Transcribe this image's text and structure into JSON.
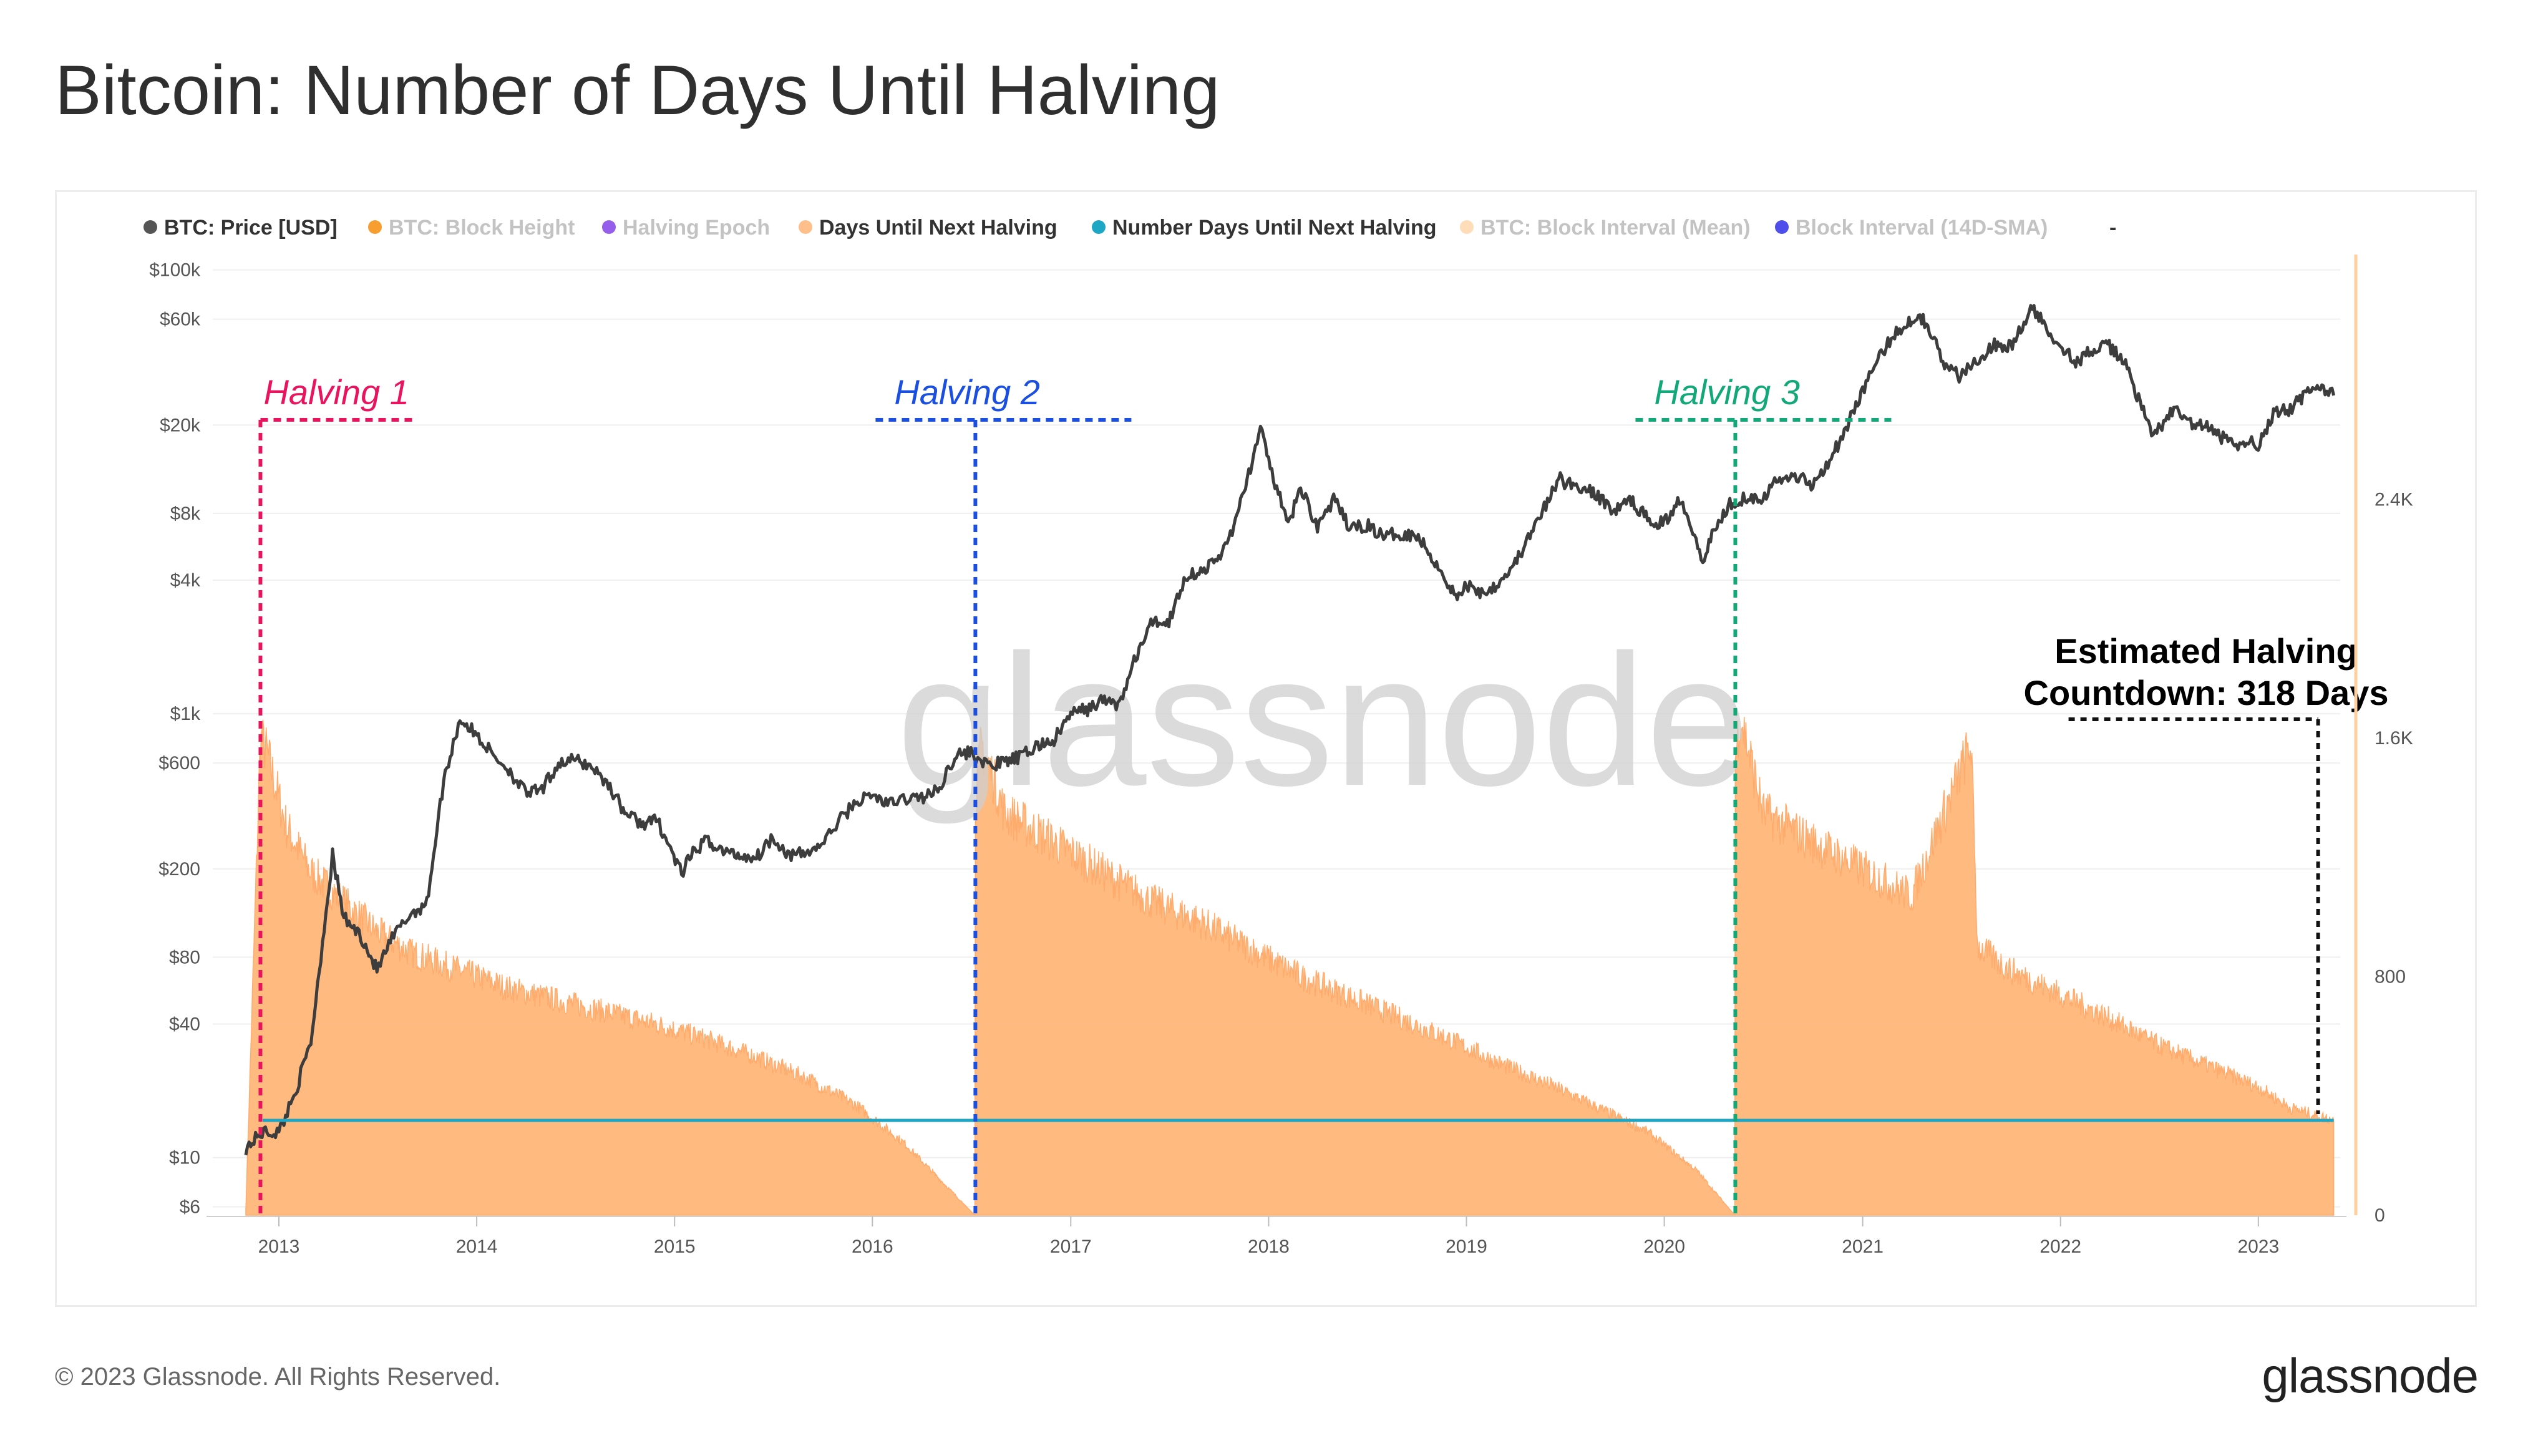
{
  "page": {
    "title": "Bitcoin: Number of Days Until Halving",
    "copyright": "© 2023 Glassnode. All Rights Reserved.",
    "logo_text": "glassnode",
    "watermark": "glassnode"
  },
  "legend": [
    {
      "label": "BTC: Price [USD]",
      "color": "#555555",
      "active": true
    },
    {
      "label": "BTC: Block Height",
      "color": "#f7931a",
      "active": false
    },
    {
      "label": "Halving Epoch",
      "color": "#8a4de8",
      "active": false
    },
    {
      "label": "Days Until Next Halving",
      "color": "#ffbf8a",
      "active": true
    },
    {
      "label": "Number Days Until Next Halving",
      "color": "#1ea7c4",
      "active": true
    },
    {
      "label": "BTC: Block Interval (Mean)",
      "color": "#ffd9b0",
      "active": false
    },
    {
      "label": "Block Interval (14D-SMA)",
      "color": "#3b3be8",
      "active": false
    },
    {
      "label": "-",
      "color": "#333333",
      "active": true
    }
  ],
  "annotations": {
    "halving1": {
      "label": "Halving 1",
      "color": "#e8155e",
      "date": "2012-11-28"
    },
    "halving2": {
      "label": "Halving 2",
      "color": "#1a4fe0",
      "date": "2016-07-09"
    },
    "halving3": {
      "label": "Halving 3",
      "color": "#12a878",
      "date": "2020-05-11"
    },
    "estimate_line1": "Estimated Halving",
    "estimate_line2": "Countdown: 318 Days"
  },
  "chart_data": {
    "type": "line",
    "x_range": [
      "2012-09-01",
      "2023-06-01"
    ],
    "x_ticks": [
      "2013",
      "2014",
      "2015",
      "2016",
      "2017",
      "2018",
      "2019",
      "2020",
      "2021",
      "2022",
      "2023"
    ],
    "y_left_scale": "log",
    "y_left_ticks": [
      "$100k",
      "$60k",
      "$20k",
      "$8k",
      "$4k",
      "$1k",
      "$600",
      "$200",
      "$80",
      "$40",
      "$10",
      "$6"
    ],
    "y_left_tick_values": [
      100000,
      60000,
      20000,
      8000,
      4000,
      1000,
      600,
      200,
      80,
      40,
      10,
      6
    ],
    "y_right_ticks": [
      "2.4K",
      "1.6K",
      "800",
      "0"
    ],
    "y_right_tick_values": [
      2400,
      1600,
      800,
      0
    ],
    "y_right_range": [
      0,
      3200
    ],
    "grid": true,
    "legend_position": "top",
    "series": [
      {
        "name": "BTC: Price [USD]",
        "kind": "line",
        "axis": "left",
        "color": "#3d3d3d",
        "x": [
          "2012-11-01",
          "2012-12-01",
          "2013-01-01",
          "2013-02-01",
          "2013-03-01",
          "2013-04-10",
          "2013-05-01",
          "2013-06-01",
          "2013-07-01",
          "2013-08-01",
          "2013-09-01",
          "2013-10-01",
          "2013-11-01",
          "2013-12-01",
          "2014-01-01",
          "2014-02-01",
          "2014-03-01",
          "2014-04-01",
          "2014-05-01",
          "2014-06-01",
          "2014-07-01",
          "2014-08-01",
          "2014-09-01",
          "2014-10-01",
          "2014-11-01",
          "2014-12-01",
          "2015-01-14",
          "2015-02-01",
          "2015-03-01",
          "2015-04-01",
          "2015-05-01",
          "2015-06-01",
          "2015-07-01",
          "2015-08-01",
          "2015-09-01",
          "2015-10-01",
          "2015-11-01",
          "2015-12-01",
          "2016-01-01",
          "2016-02-01",
          "2016-03-01",
          "2016-04-01",
          "2016-05-01",
          "2016-06-01",
          "2016-07-01",
          "2016-08-01",
          "2016-09-01",
          "2016-10-01",
          "2016-11-01",
          "2016-12-01",
          "2017-01-01",
          "2017-02-01",
          "2017-03-01",
          "2017-04-01",
          "2017-05-01",
          "2017-06-01",
          "2017-07-01",
          "2017-08-01",
          "2017-09-01",
          "2017-10-01",
          "2017-11-01",
          "2017-12-17",
          "2018-01-01",
          "2018-02-06",
          "2018-03-01",
          "2018-04-01",
          "2018-05-01",
          "2018-06-01",
          "2018-07-01",
          "2018-08-01",
          "2018-09-01",
          "2018-10-01",
          "2018-11-01",
          "2018-12-15",
          "2019-01-01",
          "2019-02-01",
          "2019-03-01",
          "2019-04-01",
          "2019-05-01",
          "2019-06-26",
          "2019-07-01",
          "2019-08-01",
          "2019-09-01",
          "2019-10-01",
          "2019-11-01",
          "2019-12-01",
          "2020-01-01",
          "2020-02-01",
          "2020-03-12",
          "2020-04-01",
          "2020-05-01",
          "2020-06-01",
          "2020-07-01",
          "2020-08-01",
          "2020-09-01",
          "2020-10-01",
          "2020-11-01",
          "2020-12-01",
          "2021-01-01",
          "2021-02-01",
          "2021-03-01",
          "2021-04-14",
          "2021-05-01",
          "2021-06-01",
          "2021-07-01",
          "2021-08-01",
          "2021-09-01",
          "2021-10-01",
          "2021-11-10",
          "2021-12-01",
          "2022-01-01",
          "2022-02-01",
          "2022-03-01",
          "2022-04-01",
          "2022-05-01",
          "2022-06-18",
          "2022-07-01",
          "2022-08-01",
          "2022-09-01",
          "2022-10-01",
          "2022-11-21",
          "2022-12-01",
          "2023-01-01",
          "2023-02-01",
          "2023-03-01",
          "2023-04-14",
          "2023-05-01",
          "2023-05-20"
        ],
        "values": [
          11,
          13,
          13,
          20,
          33,
          230,
          120,
          100,
          70,
          100,
          125,
          140,
          500,
          950,
          800,
          650,
          560,
          440,
          450,
          600,
          620,
          580,
          480,
          360,
          320,
          330,
          190,
          230,
          270,
          240,
          230,
          225,
          280,
          230,
          235,
          260,
          330,
          400,
          430,
          390,
          415,
          420,
          450,
          650,
          670,
          580,
          605,
          640,
          720,
          760,
          1000,
          1050,
          1150,
          1100,
          1800,
          2600,
          2600,
          4200,
          4400,
          5000,
          7300,
          19000,
          13800,
          7000,
          10500,
          7000,
          9200,
          6800,
          7100,
          6300,
          6500,
          6400,
          5000,
          3300,
          3800,
          3500,
          3900,
          4800,
          6500,
          12000,
          11000,
          10500,
          9500,
          8200,
          9200,
          7500,
          7200,
          9500,
          5000,
          6600,
          8900,
          9500,
          9500,
          11500,
          11800,
          10800,
          14000,
          19000,
          29000,
          40000,
          52000,
          63000,
          57000,
          37000,
          33000,
          40000,
          46000,
          45000,
          67000,
          57000,
          46000,
          38000,
          44000,
          45000,
          38000,
          18000,
          19500,
          23500,
          20000,
          19400,
          15800,
          17000,
          16500,
          23000,
          23500,
          30300,
          29000,
          27200
        ]
      },
      {
        "name": "Days Until Next Halving",
        "kind": "area",
        "axis": "right",
        "color": "#ffb77a",
        "x": [
          "2012-11-01",
          "2012-11-28",
          "2012-12-10",
          "2013-01-15",
          "2013-03-01",
          "2013-05-01",
          "2013-07-01",
          "2013-09-01",
          "2013-11-01",
          "2014-01-01",
          "2014-03-01",
          "2014-06-01",
          "2014-09-01",
          "2014-12-01",
          "2015-03-01",
          "2015-06-01",
          "2015-09-01",
          "2015-12-01",
          "2016-03-01",
          "2016-07-08",
          "2016-07-09",
          "2016-07-20",
          "2016-09-01",
          "2016-12-01",
          "2017-03-01",
          "2017-06-01",
          "2017-09-01",
          "2017-12-01",
          "2018-03-01",
          "2018-06-01",
          "2018-09-01",
          "2018-12-01",
          "2019-03-01",
          "2019-06-01",
          "2019-09-01",
          "2019-12-01",
          "2020-03-01",
          "2020-05-10",
          "2020-05-11",
          "2020-05-20",
          "2020-07-01",
          "2020-10-01",
          "2021-01-01",
          "2021-04-01",
          "2021-07-20",
          "2021-08-01",
          "2021-10-01",
          "2022-01-01",
          "2022-04-01",
          "2022-07-01",
          "2022-10-01",
          "2023-01-01",
          "2023-03-01",
          "2023-05-20"
        ],
        "values": [
          20,
          1600,
          1550,
          1300,
          1150,
          1050,
          950,
          880,
          840,
          800,
          760,
          720,
          680,
          640,
          590,
          530,
          460,
          370,
          240,
          0,
          1400,
          1580,
          1350,
          1250,
          1150,
          1050,
          980,
          890,
          800,
          730,
          660,
          590,
          510,
          440,
          360,
          280,
          150,
          0,
          1530,
          1680,
          1350,
          1250,
          1160,
          1070,
          1580,
          900,
          820,
          740,
          660,
          570,
          500,
          430,
          360,
          318
        ]
      },
      {
        "name": "Number Days Until Next Halving",
        "kind": "hline",
        "axis": "right",
        "color": "#1ea7c4",
        "values": [
          318
        ]
      }
    ]
  }
}
